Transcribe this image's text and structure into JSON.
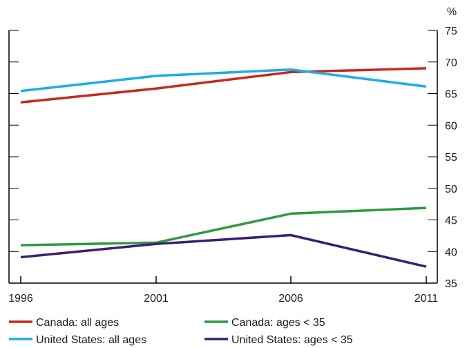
{
  "chart_data": {
    "type": "line",
    "title": "",
    "xlabel": "",
    "ylabel": "%",
    "x": [
      "1996",
      "2001",
      "2006",
      "2011"
    ],
    "ylim": [
      35,
      75
    ],
    "yticks": [
      35,
      40,
      45,
      50,
      55,
      60,
      65,
      70,
      75
    ],
    "grid": "major horizontal gridlines",
    "legend_position": "bottom",
    "series": [
      {
        "name": "Canada: all ages",
        "color": "#c8281e",
        "values": [
          63.6,
          65.8,
          68.4,
          69.0
        ]
      },
      {
        "name": "United States: all ages",
        "color": "#19aee6",
        "values": [
          65.4,
          67.8,
          68.8,
          66.1
        ]
      },
      {
        "name": "Canada: ages < 35",
        "color": "#2e9a3e",
        "values": [
          41.0,
          41.4,
          46.0,
          46.9
        ]
      },
      {
        "name": "United States: ages < 35",
        "color": "#3b1f73",
        "values": [
          39.1,
          41.2,
          42.6,
          37.6
        ]
      }
    ]
  }
}
